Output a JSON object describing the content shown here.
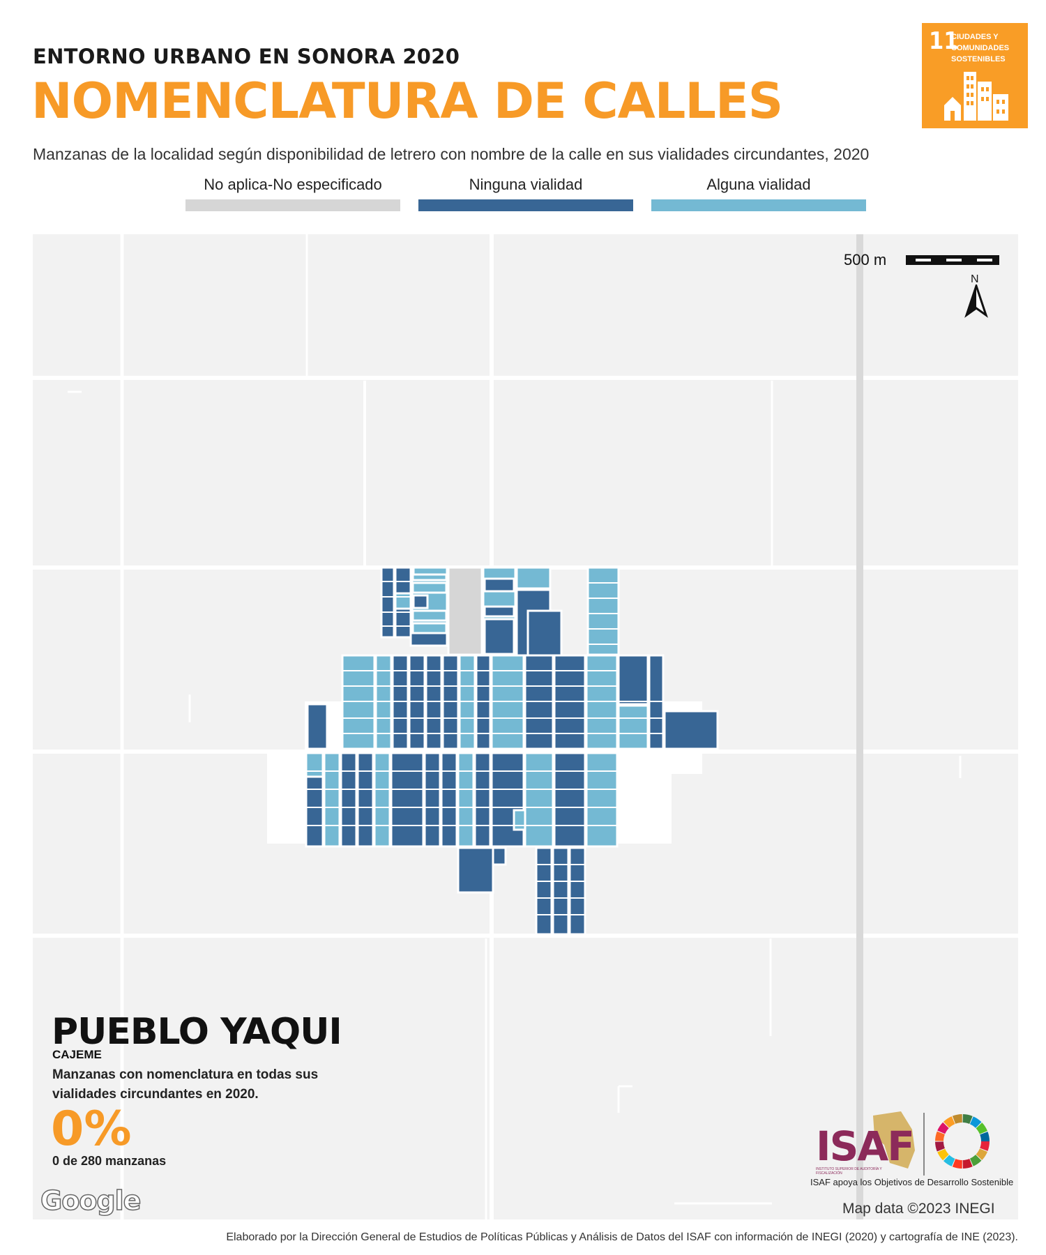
{
  "header": {
    "subtitle": "ENTORNO URBANO EN SONORA 2020",
    "title": "NOMENCLATURA DE CALLES",
    "description": "Manzanas de la localidad según disponibilidad de letrero con nombre de la calle en sus vialidades circundantes, 2020"
  },
  "sdg_badge": {
    "number": "11",
    "text": "CIUDADES Y COMUNIDADES SOSTENIBLES",
    "color": "#f99d26",
    "icon": "city-buildings-icon"
  },
  "legend": [
    {
      "label": "No aplica-No especificado",
      "color": "#d6d6d6"
    },
    {
      "label": "Ninguna vialidad",
      "color": "#386695"
    },
    {
      "label": "Alguna vialidad",
      "color": "#74b9d3"
    }
  ],
  "map": {
    "scale_label": "500 m",
    "north_label": "N",
    "background": "#f2f2f2",
    "road_color": "#ffffff",
    "highway_color": "#d9d9d9"
  },
  "locality": {
    "name": "PUEBLO YAQUI",
    "municipality": "CAJEME",
    "stat_caption": "Manzanas con nomenclatura en todas sus vialidades circundantes en 2020.",
    "stat_percent": "0%",
    "stat_count": "0 de 280 manzanas"
  },
  "logos": {
    "google": "Google",
    "isaf": "ISAF",
    "isaf_sub": "INSTITUTO SUPERIOR DE AUDITORÍA Y FISCALIZACIÓN",
    "isaf_caption": "ISAF apoya los Objetivos de Desarrollo Sostenible"
  },
  "credits": {
    "map_data": "Map data ©2023 INEGI",
    "footer": "Elaborado por la Dirección General de Estudios de Políticas Públicas y Análisis de Datos del ISAF con información de INEGI (2020) y cartografía de INE (2023)."
  }
}
